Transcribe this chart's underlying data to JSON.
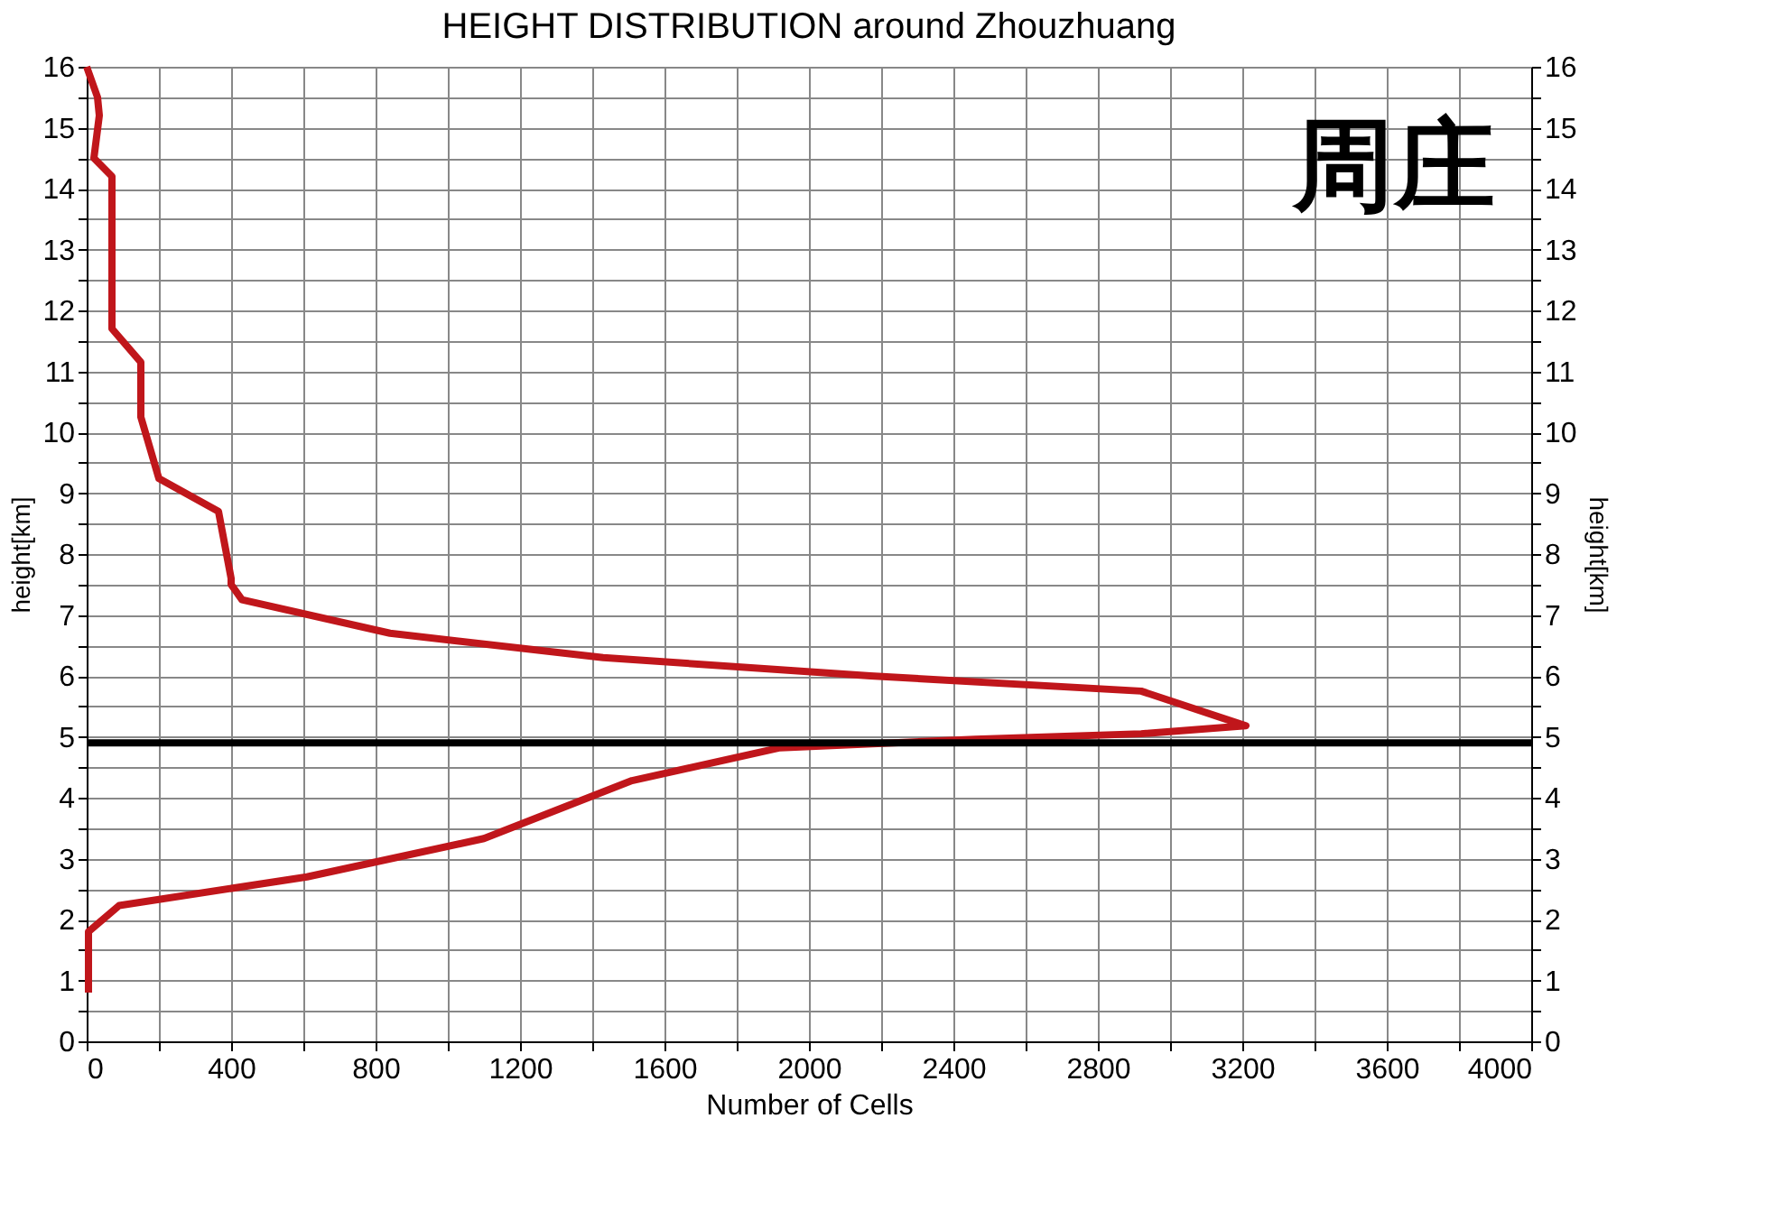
{
  "chart_data": {
    "type": "line",
    "title": "HEIGHT DISTRIBUTION around Zhouzhuang",
    "xlabel": "Number of Cells",
    "ylabel": "height[km]",
    "y2label": "height[km]",
    "annotations": [
      "周庄"
    ],
    "series": [
      {
        "color": "#c0161b",
        "x": [
          0,
          30,
          35,
          20,
          70,
          70,
          150,
          150,
          200,
          365,
          400,
          400,
          430,
          840,
          1430,
          2170,
          2920,
          3210,
          2920,
          2460,
          1920,
          1510,
          1100,
          610,
          90,
          5,
          5
        ],
        "values": [
          16,
          15.5,
          15.2,
          14.5,
          14.2,
          11.7,
          11.15,
          10.25,
          9.24,
          8.7,
          7.6,
          7.5,
          7.25,
          6.7,
          6.3,
          6.0,
          5.75,
          5.18,
          5.05,
          4.96,
          4.82,
          4.28,
          3.33,
          2.7,
          2.23,
          1.8,
          0.8
        ]
      }
    ],
    "xlim": [
      0,
      4000
    ],
    "xticks": [
      0,
      {
        "value": 200,
        "label": null
      },
      400,
      {
        "value": 600,
        "label": null
      },
      800,
      {
        "value": 1000,
        "label": null
      },
      1200,
      {
        "value": 1400,
        "label": null
      },
      1600,
      {
        "value": 1800,
        "label": null
      },
      2000,
      {
        "value": 2200,
        "label": null
      },
      2400,
      {
        "value": 2600,
        "label": null
      },
      2800,
      {
        "value": 3000,
        "label": null
      },
      3200,
      {
        "value": 3400,
        "label": null
      },
      3600,
      {
        "value": 3800,
        "label": null
      },
      4000
    ],
    "ylim": [
      0,
      16
    ],
    "yticks": [
      0,
      {
        "value": 0.5,
        "label": null
      },
      1,
      {
        "value": 1.5,
        "label": null
      },
      2,
      {
        "value": 2.5,
        "label": null
      },
      3,
      {
        "value": 3.5,
        "label": null
      },
      4,
      {
        "value": 4.5,
        "label": null
      },
      5,
      {
        "value": 5.5,
        "label": null
      },
      6,
      {
        "value": 6.5,
        "label": null
      },
      7,
      {
        "value": 7.5,
        "label": null
      },
      8,
      {
        "value": 8.5,
        "label": null
      },
      9,
      {
        "value": 9.5,
        "label": null
      },
      10,
      {
        "value": 10.5,
        "label": null
      },
      11,
      {
        "value": 11.5,
        "label": null
      },
      12,
      {
        "value": 12.5,
        "label": null
      },
      13,
      {
        "value": 13.5,
        "label": null
      },
      14,
      {
        "value": 14.5,
        "label": null
      },
      15,
      {
        "value": 15.5,
        "label": null
      },
      16
    ],
    "y2lim": [
      0,
      16
    ],
    "y2ticks": [
      0,
      {
        "value": 0.5,
        "label": null
      },
      1,
      {
        "value": 1.5,
        "label": null
      },
      2,
      {
        "value": 2.5,
        "label": null
      },
      3,
      {
        "value": 3.5,
        "label": null
      },
      4,
      {
        "value": 4.5,
        "label": null
      },
      5,
      {
        "value": 5.5,
        "label": null
      },
      6,
      {
        "value": 6.5,
        "label": null
      },
      7,
      {
        "value": 7.5,
        "label": null
      },
      8,
      {
        "value": 8.5,
        "label": null
      },
      9,
      {
        "value": 9.5,
        "label": null
      },
      10,
      {
        "value": 10.5,
        "label": null
      },
      11,
      {
        "value": 11.5,
        "label": null
      },
      12,
      {
        "value": 12.5,
        "label": null
      },
      13,
      {
        "value": 13.5,
        "label": null
      },
      14,
      {
        "value": 14.5,
        "label": null
      },
      15,
      {
        "value": 15.5,
        "label": null
      },
      16
    ],
    "ref_lines": [
      {
        "axis": "y",
        "value": 4.9,
        "color": "#000000"
      }
    ],
    "grid": true,
    "marker": "none",
    "line_style": "solid"
  }
}
